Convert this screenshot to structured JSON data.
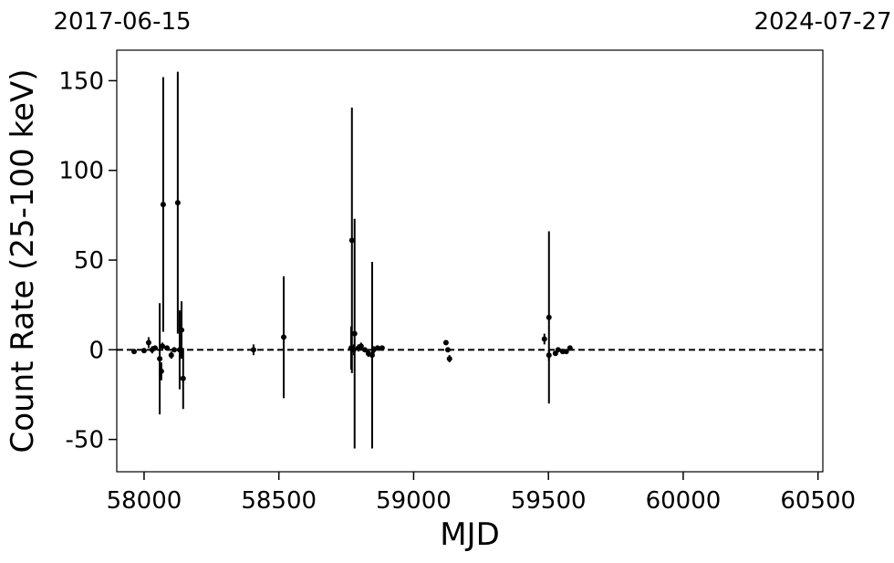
{
  "chart_data": {
    "type": "scatter",
    "xlabel": "MJD",
    "ylabel": "Count Rate (25-100 keV)",
    "top_labels": [
      {
        "value": 57919,
        "label": "2017-06-15"
      },
      {
        "value": 60518,
        "label": "2024-07-27"
      }
    ],
    "xlim": [
      57919,
      60518
    ],
    "ylim": [
      -68,
      167
    ],
    "xticks": [
      58000,
      58500,
      59000,
      59500,
      60000,
      60500
    ],
    "yticks": [
      -50,
      0,
      50,
      100,
      150
    ],
    "reference_line": 0,
    "series": [
      {
        "color": "#000000",
        "x": [
          57963,
          58000,
          58017,
          58030,
          58041,
          58058,
          58064,
          58068,
          58071,
          58085,
          58101,
          58112,
          58125,
          58132,
          58139,
          58145,
          58406,
          58518,
          58768,
          58771,
          58778,
          58781,
          58795,
          58805,
          58819,
          58832,
          58846,
          58852,
          58866,
          58883,
          59120,
          59127,
          59133,
          59485,
          59502,
          59502,
          59526,
          59536,
          59553,
          59566,
          59580
        ],
        "values": [
          -1,
          -0.5,
          4,
          0,
          1,
          -5,
          -12,
          2,
          81,
          1,
          -3,
          0,
          82,
          0,
          11,
          -16,
          0,
          7,
          1,
          61,
          0,
          9,
          1,
          2,
          0,
          -2,
          -3,
          0,
          1,
          1,
          4,
          0,
          -5,
          6,
          18,
          -3,
          -2,
          0,
          -1,
          -1,
          1
        ],
        "errors": [
          1,
          1,
          3,
          2,
          1,
          31,
          5,
          2,
          71,
          1,
          2,
          1,
          73,
          22,
          16,
          17,
          3,
          34,
          12,
          74,
          3,
          64,
          2,
          2,
          1,
          2,
          52,
          2,
          1,
          1,
          1,
          1,
          2,
          3,
          48,
          3,
          1,
          1,
          1,
          1,
          1
        ]
      }
    ]
  }
}
